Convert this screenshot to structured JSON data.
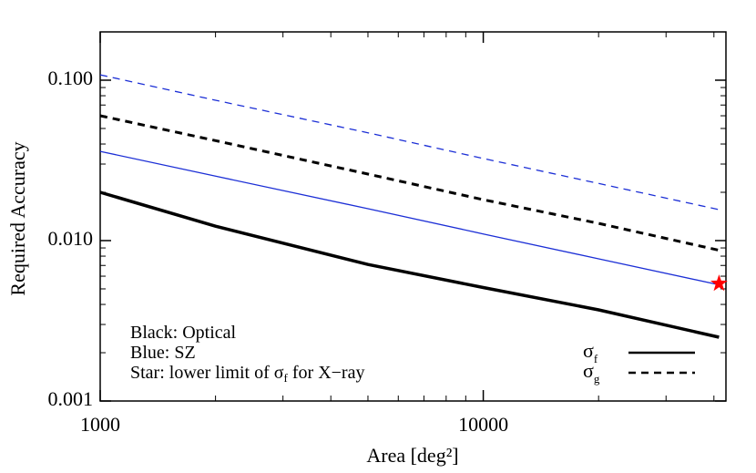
{
  "chart_data": {
    "type": "line",
    "x_label": "Area [deg²]",
    "y_label": "Required Accuracy",
    "log_x": true,
    "log_y": true,
    "minor_ticks": true,
    "x": [
      1000,
      2000,
      5000,
      10000,
      20000,
      41253
    ],
    "series": [
      {
        "color": "#000000",
        "style": "solid",
        "width": 3.5,
        "values": [
          0.02,
          0.0123,
          0.0071,
          0.0051,
          0.0037,
          0.0025
        ]
      },
      {
        "color": "#1c2fd6",
        "style": "solid",
        "width": 1.3,
        "values": [
          0.036,
          0.0252,
          0.0158,
          0.011,
          0.0077,
          0.0053
        ]
      },
      {
        "color": "#000000",
        "style": "dashed",
        "width": 3,
        "values": [
          0.06,
          0.042,
          0.026,
          0.018,
          0.0128,
          0.0087
        ]
      },
      {
        "color": "#1c2fd6",
        "style": "dashed",
        "width": 1.3,
        "values": [
          0.108,
          0.075,
          0.047,
          0.0325,
          0.0227,
          0.0156
        ]
      }
    ],
    "points": [
      {
        "color": "#ff0000",
        "x": 41253,
        "y": 0.0054
      }
    ],
    "xlim": [
      1000,
      43000
    ],
    "xticks": [
      1000,
      10000
    ],
    "ylim": [
      0.001,
      0.2
    ],
    "yticks": [
      {
        "value": 0.001,
        "label": "0.001"
      },
      {
        "value": 0.01,
        "label": "0.010"
      },
      {
        "value": 0.1,
        "label": "0.100"
      }
    ],
    "annotations": [
      {
        "parts": [
          "Black: Optical"
        ]
      },
      {
        "parts": [
          "Blue: SZ"
        ]
      },
      {
        "parts": [
          "Star: lower limit of σ",
          "f",
          " for X−ray"
        ]
      }
    ],
    "legend": [
      {
        "symbol": "σ",
        "sub": "f",
        "style": "solid"
      },
      {
        "symbol": "σ",
        "sub": "g",
        "style": "dashed"
      }
    ]
  }
}
